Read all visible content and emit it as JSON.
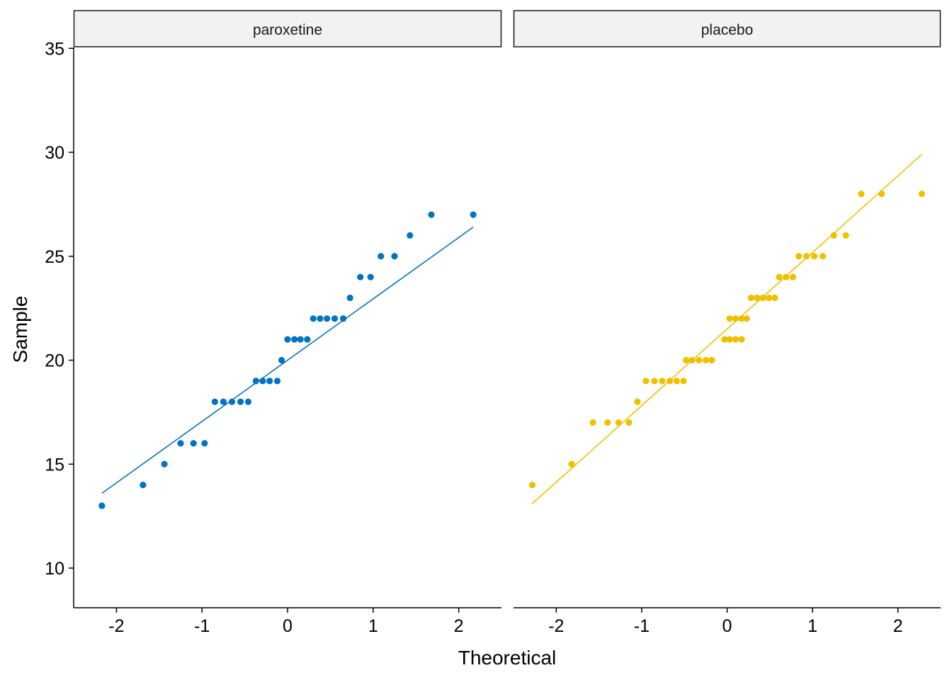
{
  "chart_data": {
    "type": "scatter",
    "subtype": "qq-plot",
    "xlabel": "Theoretical",
    "ylabel": "Sample",
    "xlim": [
      -2.5,
      2.5
    ],
    "ylim": [
      8,
      36.5
    ],
    "x_ticks": [
      -2,
      -1,
      0,
      1,
      2
    ],
    "x_tick_labels": [
      "-2",
      "-1",
      "0",
      "1",
      "2"
    ],
    "y_ticks": [
      10,
      15,
      20,
      25,
      30,
      35
    ],
    "y_tick_labels": [
      "10",
      "15",
      "20",
      "25",
      "30",
      "35"
    ],
    "grid": false,
    "legend": "none",
    "panels": [
      {
        "name": "paroxetine",
        "color": "#0073C2",
        "points": [
          [
            -2.17,
            13
          ],
          [
            -1.69,
            14
          ],
          [
            -1.44,
            15
          ],
          [
            -1.25,
            16
          ],
          [
            -1.1,
            16
          ],
          [
            -0.97,
            16
          ],
          [
            -0.85,
            18
          ],
          [
            -0.75,
            18
          ],
          [
            -0.65,
            18
          ],
          [
            -0.55,
            18
          ],
          [
            -0.46,
            18
          ],
          [
            -0.37,
            19
          ],
          [
            -0.29,
            19
          ],
          [
            -0.21,
            19
          ],
          [
            -0.12,
            19
          ],
          [
            -0.07,
            20
          ],
          [
            0.0,
            21
          ],
          [
            0.08,
            21
          ],
          [
            0.15,
            21
          ],
          [
            0.23,
            21
          ],
          [
            0.3,
            22
          ],
          [
            0.38,
            22
          ],
          [
            0.46,
            22
          ],
          [
            0.55,
            22
          ],
          [
            0.65,
            22
          ],
          [
            0.73,
            23
          ],
          [
            0.85,
            24
          ],
          [
            0.97,
            24
          ],
          [
            1.09,
            25
          ],
          [
            1.25,
            25
          ],
          [
            1.43,
            26
          ],
          [
            1.68,
            27
          ],
          [
            2.17,
            27
          ]
        ],
        "line": [
          [
            -2.17,
            13.6
          ],
          [
            2.17,
            26.4
          ]
        ]
      },
      {
        "name": "placebo",
        "color": "#EFC000",
        "points": [
          [
            -2.28,
            14
          ],
          [
            -1.82,
            15
          ],
          [
            -1.57,
            17
          ],
          [
            -1.4,
            17
          ],
          [
            -1.27,
            17
          ],
          [
            -1.15,
            17
          ],
          [
            -1.05,
            18
          ],
          [
            -0.95,
            19
          ],
          [
            -0.85,
            19
          ],
          [
            -0.76,
            19
          ],
          [
            -0.67,
            19
          ],
          [
            -0.59,
            19
          ],
          [
            -0.51,
            19
          ],
          [
            -0.48,
            20
          ],
          [
            -0.41,
            20
          ],
          [
            -0.33,
            20
          ],
          [
            -0.25,
            20
          ],
          [
            -0.18,
            20
          ],
          [
            -0.03,
            21
          ],
          [
            0.03,
            21
          ],
          [
            0.1,
            21
          ],
          [
            0.17,
            21
          ],
          [
            0.03,
            22
          ],
          [
            0.1,
            22
          ],
          [
            0.17,
            22
          ],
          [
            0.23,
            22
          ],
          [
            0.28,
            23
          ],
          [
            0.35,
            23
          ],
          [
            0.42,
            23
          ],
          [
            0.49,
            23
          ],
          [
            0.56,
            23
          ],
          [
            0.61,
            24
          ],
          [
            0.69,
            24
          ],
          [
            0.77,
            24
          ],
          [
            0.84,
            25
          ],
          [
            0.93,
            25
          ],
          [
            1.02,
            25
          ],
          [
            1.12,
            25
          ],
          [
            1.25,
            26
          ],
          [
            1.39,
            26
          ],
          [
            1.57,
            28
          ],
          [
            1.81,
            28
          ],
          [
            2.28,
            28
          ]
        ],
        "line": [
          [
            -2.28,
            13.1
          ],
          [
            2.28,
            29.9
          ]
        ]
      }
    ]
  }
}
